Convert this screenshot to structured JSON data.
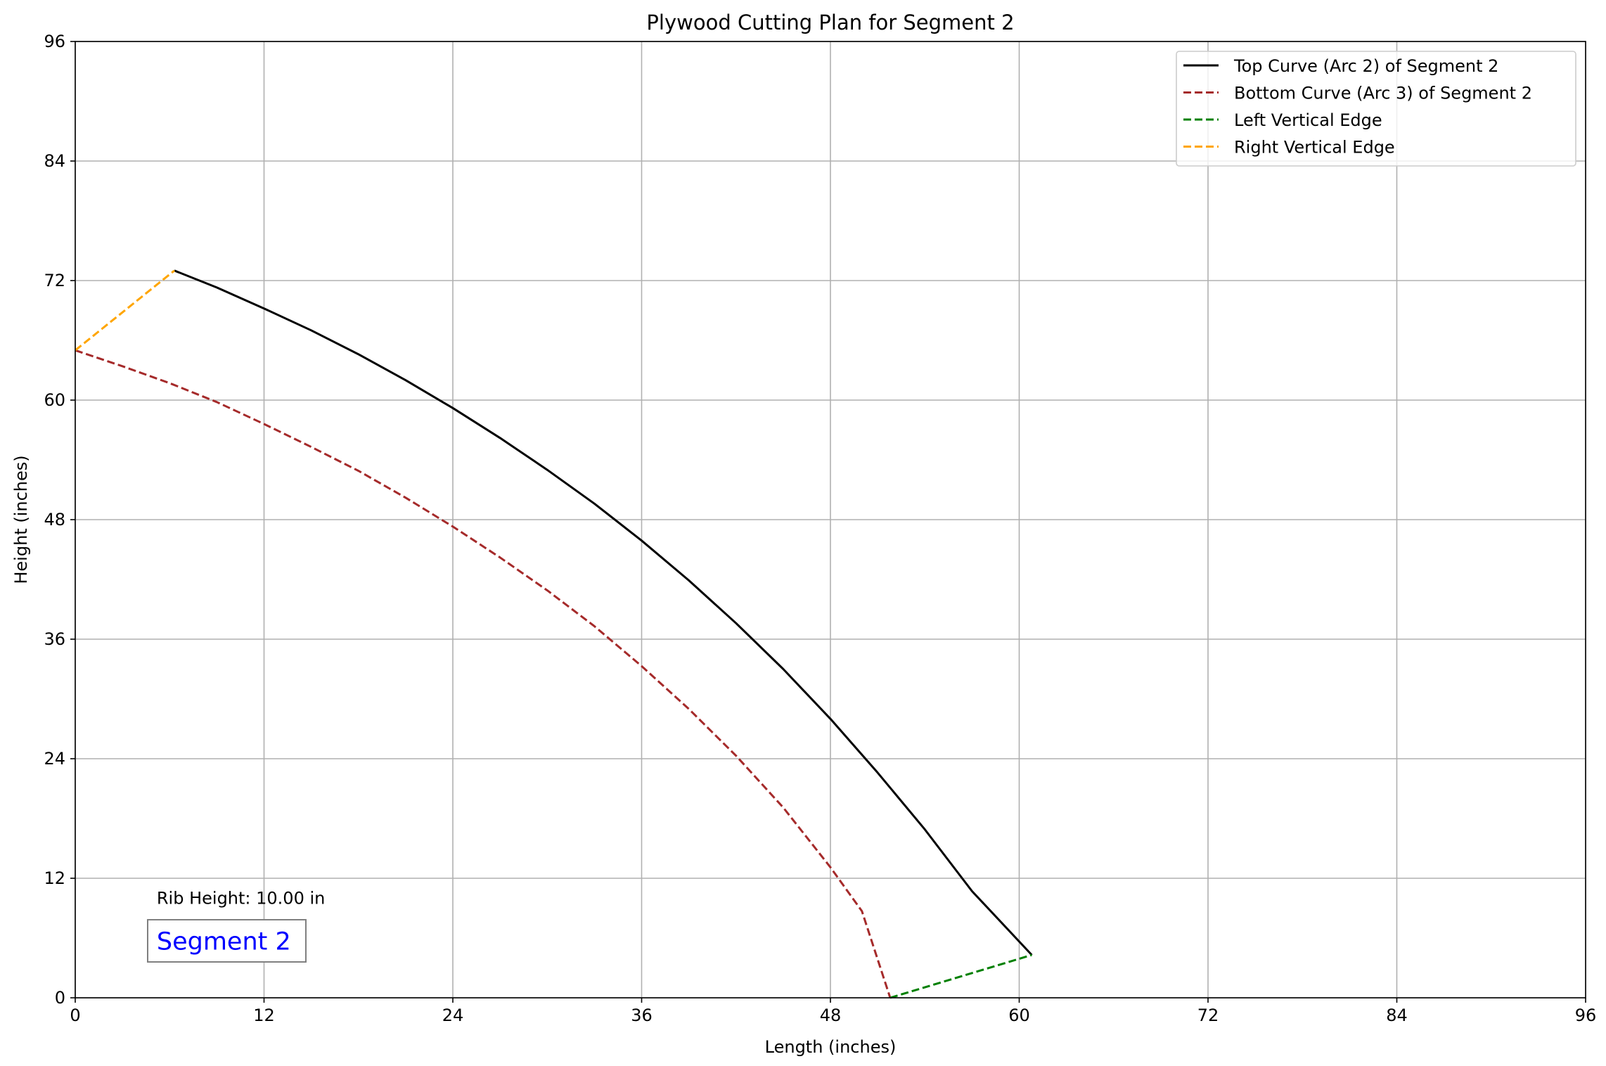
{
  "chart_data": {
    "type": "line",
    "title": "Plywood Cutting Plan for Segment 2",
    "xlabel": "Length (inches)",
    "ylabel": "Height (inches)",
    "xlim": [
      0,
      96
    ],
    "ylim": [
      0,
      96
    ],
    "xticks": [
      0,
      12,
      24,
      36,
      48,
      60,
      72,
      84,
      96
    ],
    "yticks": [
      0,
      12,
      24,
      36,
      48,
      60,
      72,
      84,
      96
    ],
    "grid": true,
    "legend_position": "top-right",
    "series": [
      {
        "name": "Top Curve (Arc 2) of Segment 2",
        "color": "#000000",
        "dash": "solid",
        "points": [
          [
            6.3,
            73.0
          ],
          [
            9,
            71.3
          ],
          [
            12,
            69.2
          ],
          [
            15,
            67.0
          ],
          [
            18,
            64.6
          ],
          [
            21,
            62.0
          ],
          [
            24,
            59.2
          ],
          [
            27,
            56.2
          ],
          [
            30,
            53.0
          ],
          [
            33,
            49.6
          ],
          [
            36,
            45.9
          ],
          [
            39,
            41.9
          ],
          [
            42,
            37.6
          ],
          [
            45,
            33.0
          ],
          [
            48,
            28.0
          ],
          [
            51,
            22.6
          ],
          [
            54,
            16.9
          ],
          [
            57,
            10.7
          ],
          [
            60.8,
            4.3
          ]
        ]
      },
      {
        "name": "Bottom Curve (Arc 3) of Segment 2",
        "color": "#a52a2a",
        "dash": "dashed",
        "points": [
          [
            0,
            65.0
          ],
          [
            3,
            63.4
          ],
          [
            6,
            61.7
          ],
          [
            9,
            59.8
          ],
          [
            12,
            57.6
          ],
          [
            15,
            55.3
          ],
          [
            18,
            52.9
          ],
          [
            21,
            50.2
          ],
          [
            24,
            47.3
          ],
          [
            27,
            44.2
          ],
          [
            30,
            40.9
          ],
          [
            33,
            37.3
          ],
          [
            36,
            33.3
          ],
          [
            39,
            29.0
          ],
          [
            42,
            24.3
          ],
          [
            45,
            19.1
          ],
          [
            48,
            13.1
          ],
          [
            50,
            8.7
          ],
          [
            51.8,
            0
          ]
        ]
      },
      {
        "name": "Left Vertical Edge",
        "color": "#008000",
        "dash": "dashed",
        "points": [
          [
            51.8,
            0
          ],
          [
            60.8,
            4.3
          ]
        ]
      },
      {
        "name": "Right Vertical Edge",
        "color": "#ffa500",
        "dash": "dashed",
        "points": [
          [
            0,
            65.0
          ],
          [
            6.3,
            73.0
          ]
        ]
      }
    ],
    "annotations": {
      "rib_height_text": "Rib Height: 10.00 in",
      "rib_height_pos": [
        5,
        10
      ],
      "segment_label": "Segment 2",
      "segment_label_pos": [
        5,
        5.7
      ],
      "segment_label_color": "#0000ff"
    }
  }
}
